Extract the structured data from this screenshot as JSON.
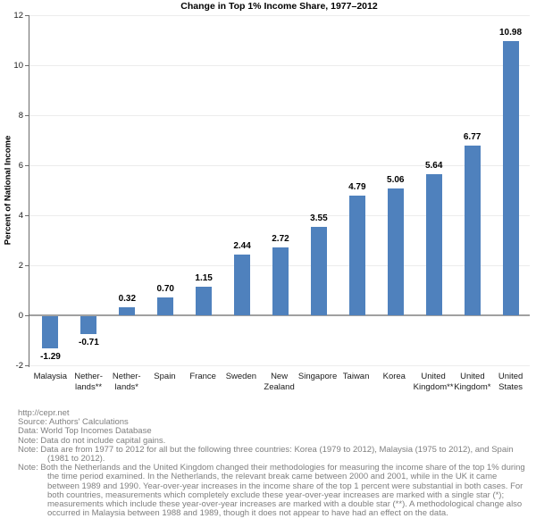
{
  "chart_data": {
    "type": "bar",
    "title": "Change in Top 1% Income Share, 1977–2012",
    "xlabel": "",
    "ylabel": "Percent of National Income",
    "ylim": [
      -2,
      12
    ],
    "yticks": [
      12,
      10,
      8,
      6,
      4,
      2,
      0,
      -2
    ],
    "grid": true,
    "categories": [
      "Malaysia",
      "Nether-\nlands**",
      "Nether-\nlands*",
      "Spain",
      "France",
      "Sweden",
      "New\nZealand",
      "Singapore",
      "Taiwan",
      "Korea",
      "United\nKingdom**",
      "United\nKingdom*",
      "United\nStates"
    ],
    "values": [
      -1.29,
      -0.71,
      0.32,
      0.7,
      1.15,
      2.44,
      2.72,
      3.55,
      4.79,
      5.06,
      5.64,
      6.77,
      10.98
    ],
    "colors": {
      "bar": "#4f81bd",
      "gridline": "#ececec",
      "zero_line": "#a0a0a0",
      "axis": "#6b6b6b",
      "footer_text": "#7f7f7f"
    }
  },
  "footer": {
    "lines": [
      {
        "label": "",
        "text": "http://cepr.net"
      },
      {
        "label": "Source:",
        "text": "Authors' Calculations"
      },
      {
        "label": "Data:",
        "text": "World Top Incomes Database"
      },
      {
        "label": "Note:",
        "text": "Data do not include capital gains."
      },
      {
        "label": "Note:",
        "text": "Data are from 1977 to 2012 for all but the following three countries: Korea (1979 to 2012), Malaysia (1975 to 2012), and Spain (1981 to 2012)."
      },
      {
        "label": "Note:",
        "text": "Both the Netherlands and the United Kingdom changed their methodologies for measuring the income share of the top 1% during the time period examined. In the Netherlands, the relevant break came between 2000 and 2001, while in the UK it came between 1989 and 1990. Year-over-year increases in the income share of the top 1 percent were substantial in both cases. For both countries, measurements which completely exclude these year-over-year increases are marked with a single star (*); measurements which include these year-over-year increases are marked with a double star (**). A methodological change also occurred in Malaysia between 1988 and 1989, though it does not appear to have had an effect on the data."
      }
    ]
  }
}
